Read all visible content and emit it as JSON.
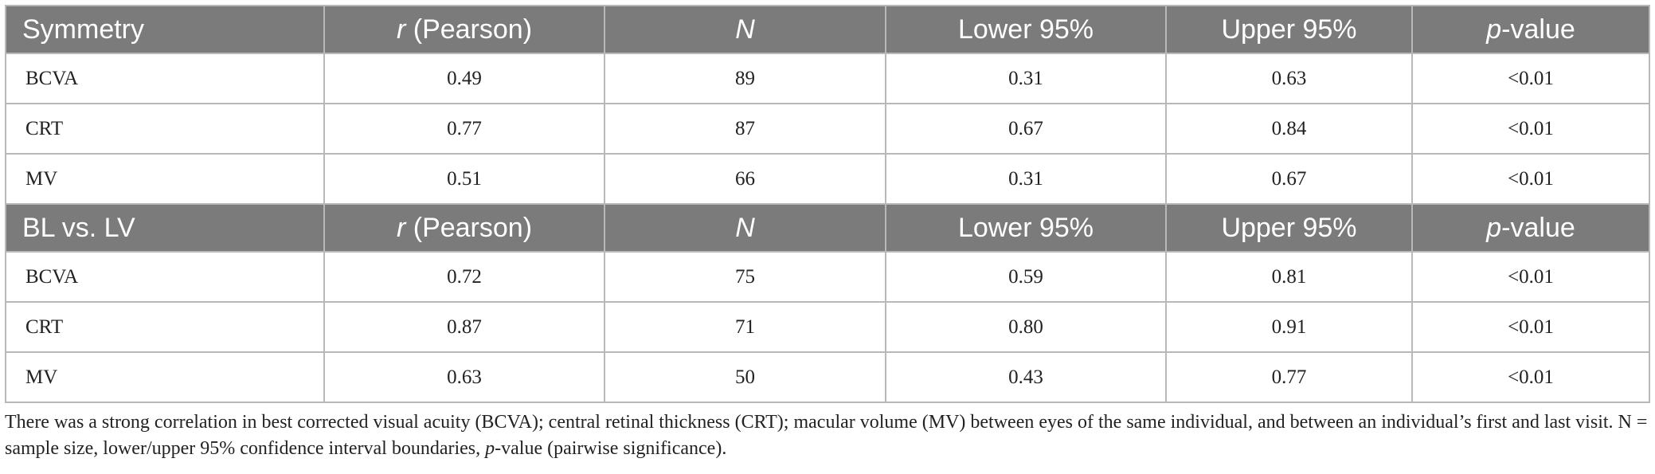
{
  "table": {
    "sections": [
      {
        "header": {
          "label": "Symmetry",
          "r_italic": "r",
          "r_rest": " (Pearson)",
          "n": "N",
          "lower": "Lower 95%",
          "upper": "Upper 95%",
          "p_italic": "p",
          "p_rest": "-value"
        },
        "rows": [
          {
            "label": "BCVA",
            "r": "0.49",
            "n": "89",
            "lower": "0.31",
            "upper": "0.63",
            "p": "<0.01"
          },
          {
            "label": "CRT",
            "r": "0.77",
            "n": "87",
            "lower": "0.67",
            "upper": "0.84",
            "p": "<0.01"
          },
          {
            "label": "MV",
            "r": "0.51",
            "n": "66",
            "lower": "0.31",
            "upper": "0.67",
            "p": "<0.01"
          }
        ]
      },
      {
        "header": {
          "label": "BL vs. LV",
          "r_italic": "r",
          "r_rest": " (Pearson)",
          "n": "N",
          "lower": "Lower 95%",
          "upper": "Upper 95%",
          "p_italic": "p",
          "p_rest": "-value"
        },
        "rows": [
          {
            "label": "BCVA",
            "r": "0.72",
            "n": "75",
            "lower": "0.59",
            "upper": "0.81",
            "p": "<0.01"
          },
          {
            "label": "CRT",
            "r": "0.87",
            "n": "71",
            "lower": "0.80",
            "upper": "0.91",
            "p": "<0.01"
          },
          {
            "label": "MV",
            "r": "0.63",
            "n": "50",
            "lower": "0.43",
            "upper": "0.77",
            "p": "<0.01"
          }
        ]
      }
    ]
  },
  "caption": {
    "text_before": "There was a strong correlation in best corrected visual acuity (BCVA); central retinal thickness (CRT); macular volume (MV) between eyes of the same individual, and between an individual’s first and last visit. N = sample size, lower/upper 95% confidence interval boundaries, ",
    "italic": "p",
    "text_after": "-value (pairwise significance)."
  },
  "colors": {
    "header_background": "#7b7b7b",
    "header_text": "#ffffff",
    "grid_lines": "#b8b8b8",
    "body_text": "#222222"
  }
}
